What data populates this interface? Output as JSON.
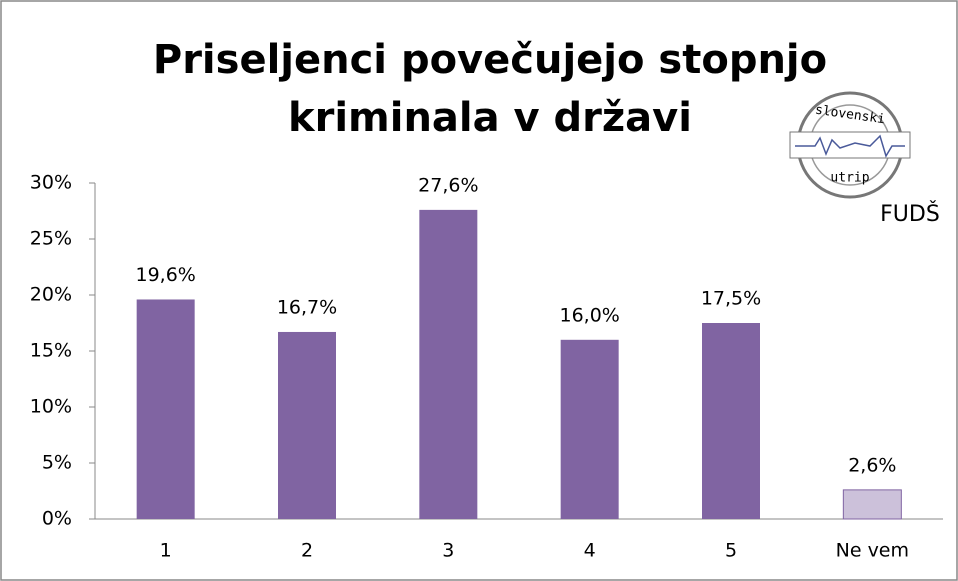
{
  "chart_data": {
    "type": "bar",
    "title": [
      "Priseljenci povečujejo stopnjo",
      "kriminala v državi"
    ],
    "categories": [
      "1",
      "2",
      "3",
      "4",
      "5",
      "Ne vem"
    ],
    "values": [
      19.6,
      16.7,
      27.6,
      16.0,
      17.5,
      2.6
    ],
    "value_labels": [
      "19,6%",
      "16,7%",
      "27,6%",
      "16,0%",
      "17,5%",
      "2,6%"
    ],
    "colors": [
      "#8064a2",
      "#8064a2",
      "#8064a2",
      "#8064a2",
      "#8064a2",
      "#ccc1da"
    ],
    "ylim": [
      0,
      30
    ],
    "yticks": [
      {
        "value": 0,
        "label": "0%"
      },
      {
        "value": 5,
        "label": "5%"
      },
      {
        "value": 10,
        "label": "10%"
      },
      {
        "value": 15,
        "label": "15%"
      },
      {
        "value": 20,
        "label": "20%"
      },
      {
        "value": 25,
        "label": "25%"
      },
      {
        "value": 30,
        "label": "30%"
      }
    ],
    "grid": false,
    "logo": {
      "top": "slovenski",
      "bottom": "utrip",
      "org": "FUDŠ"
    }
  }
}
